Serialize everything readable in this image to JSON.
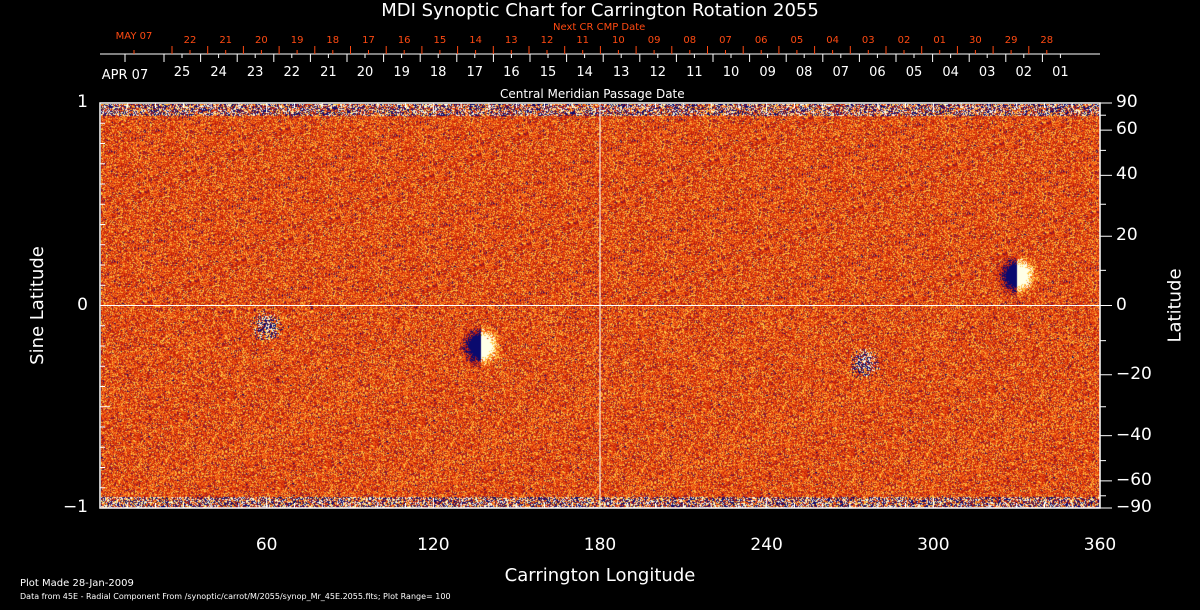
{
  "chart_data": {
    "type": "heatmap",
    "title": "MDI Synoptic Chart for Carrington Rotation 2055",
    "xlabel": "Carrington Longitude",
    "ylabel": "Sine Latitude",
    "ylabel_right": "Latitude",
    "xlim": [
      0,
      360
    ],
    "ylim": [
      -1,
      1
    ],
    "x_ticks": [
      "60",
      "120",
      "180",
      "240",
      "300",
      "360"
    ],
    "y_ticks_left": [
      "1",
      "0",
      "−1"
    ],
    "y_ticks_right": [
      "90",
      "60",
      "40",
      "20",
      "0",
      "−20",
      "−40",
      "−60",
      "−90"
    ],
    "top_axis_label": "Central Meridian Passage Date",
    "cmp_dates": [
      "APR 07",
      "25",
      "24",
      "23",
      "22",
      "21",
      "20",
      "19",
      "18",
      "17",
      "16",
      "15",
      "14",
      "13",
      "12",
      "11",
      "10",
      "09",
      "08",
      "07",
      "06",
      "05",
      "04",
      "03",
      "02",
      "01"
    ],
    "next_cr_label": "Next CR CMP Date",
    "next_cr_dates": [
      "MAY 07",
      "22",
      "21",
      "20",
      "19",
      "18",
      "17",
      "16",
      "15",
      "14",
      "13",
      "12",
      "11",
      "10",
      "09",
      "08",
      "07",
      "06",
      "05",
      "04",
      "03",
      "02",
      "01",
      "30",
      "29",
      "28"
    ],
    "colorscale": "signed magnetic field, plot range ±100",
    "plot_range": 100,
    "active_regions": [
      {
        "lon": 330,
        "lat": 0.15,
        "polarity": "bipolar"
      },
      {
        "lon": 137,
        "lat": -0.2,
        "polarity": "bipolar"
      },
      {
        "lon": 60,
        "lat": -0.1,
        "polarity": "mixed"
      },
      {
        "lon": 275,
        "lat": -0.28,
        "polarity": "mixed"
      }
    ]
  },
  "footer": {
    "plot_made": "Plot Made 28-Jan-2009",
    "source": "Data from 45E - Radial Component From /synoptic/carrot/M/2055/synop_Mr_45E.2055.fits; Plot Range=  100"
  },
  "colors": {
    "background": "#000000",
    "field": "#e8400c",
    "next_cr": "#ff4a12",
    "axis": "#ffffff"
  }
}
